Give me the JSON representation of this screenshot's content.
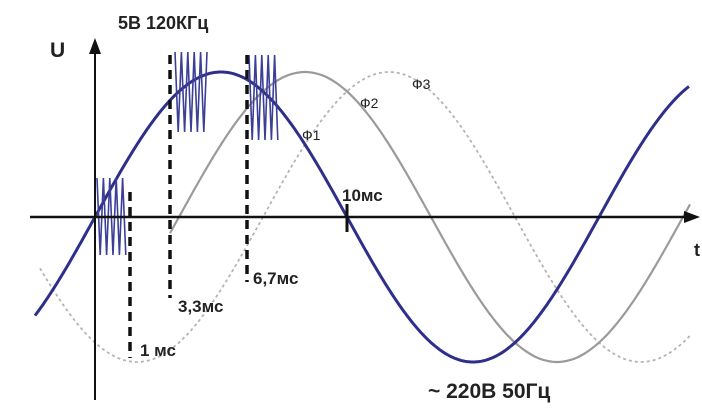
{
  "axes": {
    "y_label": "U",
    "x_label": "t"
  },
  "burst_label": "5В 120КГц",
  "supply_label": "~ 220В 50Гц",
  "markers": [
    {
      "label": "1 мс"
    },
    {
      "label": "3,3мс"
    },
    {
      "label": "6,7мс"
    },
    {
      "label": "10мс"
    }
  ],
  "phases": [
    {
      "name": "Ф1",
      "color": "#2e2f8a",
      "style": "solid"
    },
    {
      "name": "Ф2",
      "color": "#9a9a9a",
      "style": "solid"
    },
    {
      "name": "Ф3",
      "color": "#b4b4b4",
      "style": "dashed"
    }
  ],
  "colors": {
    "axis": "#111111",
    "burst": "#3b3f96",
    "marker": "#111111"
  }
}
